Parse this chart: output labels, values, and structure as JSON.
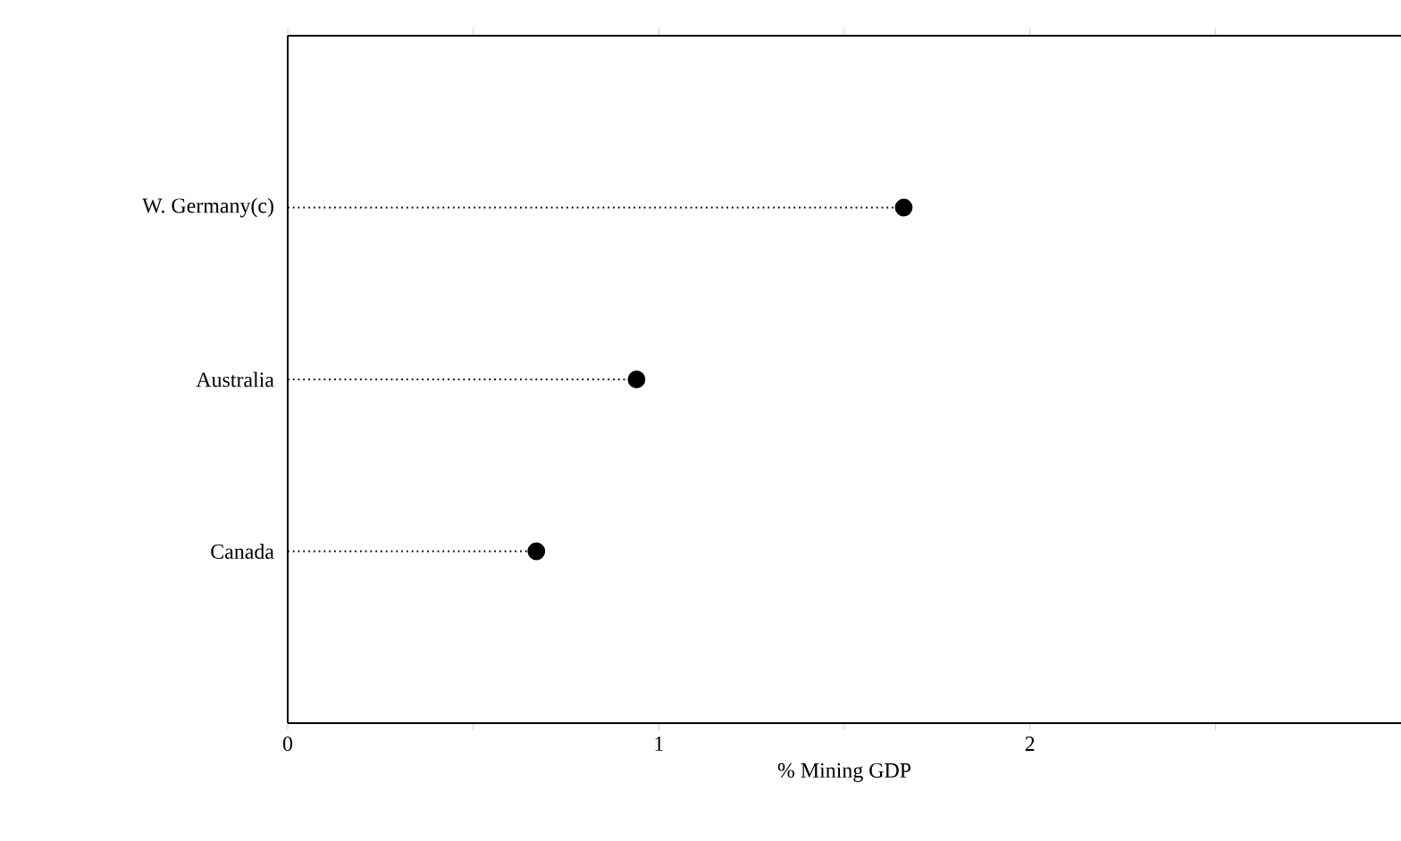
{
  "chart_data": {
    "type": "lollipop",
    "orientation": "horizontal",
    "xlabel": "% Mining GDP",
    "categories": [
      "W. Germany(c)",
      "Australia",
      "Canada"
    ],
    "values": [
      1.66,
      0.94,
      0.67
    ],
    "color": "#000000",
    "marker": "circle",
    "line_style": "dotted",
    "xlim": [
      0,
      3
    ],
    "xticks": [
      0,
      {
        "value": 0.5,
        "label": null
      },
      1,
      {
        "value": 1.5,
        "label": null
      },
      2,
      {
        "value": 2.5,
        "label": null
      }
    ]
  }
}
